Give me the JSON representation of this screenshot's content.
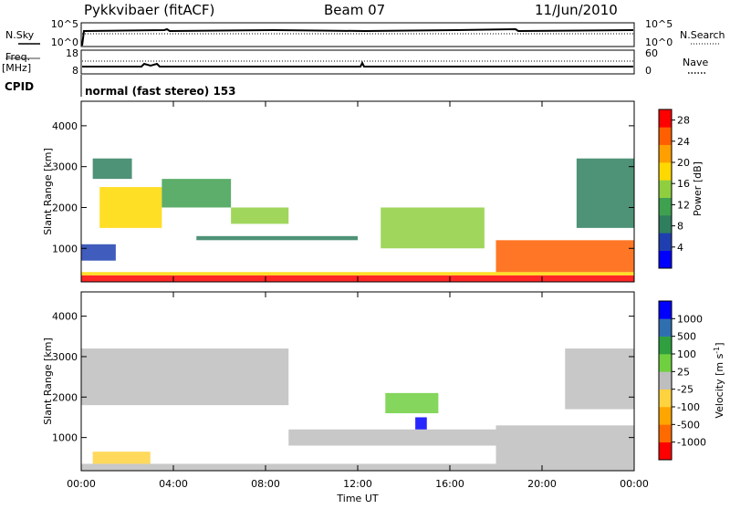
{
  "header": {
    "station": "Pykkvibaer (fitACF)",
    "beam": "Beam 07",
    "date": "11/Jun/2010"
  },
  "top_panels": {
    "nsky_label": "N.Sky",
    "nsearch_label": "N.Search",
    "noise_ticks_left": [
      "10^5",
      "10^0"
    ],
    "noise_ticks_right": [
      "10^5",
      "10^0"
    ],
    "freq_label": "Freq.",
    "freq_unit": "[MHz]",
    "freq_ticks": [
      "18",
      "8"
    ],
    "nave_label": "Nave",
    "nave_ticks": [
      "60",
      "0"
    ],
    "cpid_label": "CPID",
    "cpid_text": "normal (fast stereo) 153"
  },
  "colors": {
    "power": [
      "#0000ff",
      "#1f3fb0",
      "#2f7f5f",
      "#3fa050",
      "#8fcf3f",
      "#ffd800",
      "#ff9f00",
      "#ff5f00",
      "#ff0000"
    ],
    "velocity": [
      "#ff0000",
      "#ff6a00",
      "#ffa500",
      "#ffd23f",
      "#bebebe",
      "#6fcf3f",
      "#2f9f3f",
      "#2f6fb0",
      "#0000ff"
    ],
    "ground_scatter": "#bebebe"
  },
  "chart_data": [
    {
      "type": "heatmap",
      "name": "power",
      "ylabel": "Slant Range [km]",
      "xlabel": "Time UT",
      "xlim": [
        0,
        24
      ],
      "ylim": [
        180,
        4600
      ],
      "yticks": [
        "1000",
        "2000",
        "3000",
        "4000"
      ],
      "xticks": [
        "00:00",
        "04:00",
        "08:00",
        "12:00",
        "16:00",
        "20:00",
        "00:00"
      ],
      "colorbar_label": "Power [dB]",
      "colorbar_ticks": [
        "4",
        "8",
        "12",
        "16",
        "20",
        "24",
        "28"
      ],
      "colorbar_range": [
        0,
        30
      ],
      "regions": [
        {
          "t": [
            0,
            24
          ],
          "r": [
            180,
            340
          ],
          "value": 28
        },
        {
          "t": [
            0,
            24
          ],
          "r": [
            340,
            420
          ],
          "value": 18
        },
        {
          "t": [
            0,
            1.5
          ],
          "r": [
            700,
            1100
          ],
          "value": 6
        },
        {
          "t": [
            0.8,
            3.5
          ],
          "r": [
            1500,
            2500
          ],
          "value": 18
        },
        {
          "t": [
            0.5,
            2.2
          ],
          "r": [
            2700,
            3200
          ],
          "value": 8
        },
        {
          "t": [
            3.5,
            6.5
          ],
          "r": [
            2000,
            2700
          ],
          "value": 10
        },
        {
          "t": [
            6.5,
            9
          ],
          "r": [
            1600,
            2000
          ],
          "value": 14
        },
        {
          "t": [
            5,
            12
          ],
          "r": [
            1200,
            1300
          ],
          "value": 8
        },
        {
          "t": [
            13,
            17.5
          ],
          "r": [
            1000,
            2000
          ],
          "value": 16
        },
        {
          "t": [
            18,
            24
          ],
          "r": [
            420,
            1200
          ],
          "value": 24
        },
        {
          "t": [
            21.5,
            24
          ],
          "r": [
            1500,
            3200
          ],
          "value": 8
        }
      ]
    },
    {
      "type": "heatmap",
      "name": "velocity",
      "ylabel": "Slant Range [km]",
      "xlabel": "Time UT",
      "xlim": [
        0,
        24
      ],
      "ylim": [
        180,
        4600
      ],
      "yticks": [
        "1000",
        "2000",
        "3000",
        "4000"
      ],
      "xticks": [
        "00:00",
        "04:00",
        "08:00",
        "12:00",
        "16:00",
        "20:00",
        "00:00"
      ],
      "colorbar_label": "Velocity [m s^-1]",
      "colorbar_ticks": [
        "1000",
        "500",
        "100",
        "25",
        "-25",
        "-100",
        "-500",
        "-1000"
      ],
      "colorbar_range": [
        -1000,
        1000
      ],
      "regions": [
        {
          "t": [
            0,
            24
          ],
          "r": [
            180,
            350
          ],
          "value": 0
        },
        {
          "t": [
            0.5,
            3
          ],
          "r": [
            350,
            650
          ],
          "value": -300
        },
        {
          "t": [
            0,
            9
          ],
          "r": [
            1800,
            3200
          ],
          "value": 0
        },
        {
          "t": [
            9,
            18
          ],
          "r": [
            800,
            1200
          ],
          "value": 0
        },
        {
          "t": [
            13.2,
            15.5
          ],
          "r": [
            1600,
            2100
          ],
          "value": 300
        },
        {
          "t": [
            14.5,
            15
          ],
          "r": [
            1200,
            1500
          ],
          "value": 800
        },
        {
          "t": [
            18,
            24
          ],
          "r": [
            350,
            1300
          ],
          "value": 0
        },
        {
          "t": [
            21,
            24
          ],
          "r": [
            1700,
            3200
          ],
          "value": 0
        }
      ]
    }
  ]
}
